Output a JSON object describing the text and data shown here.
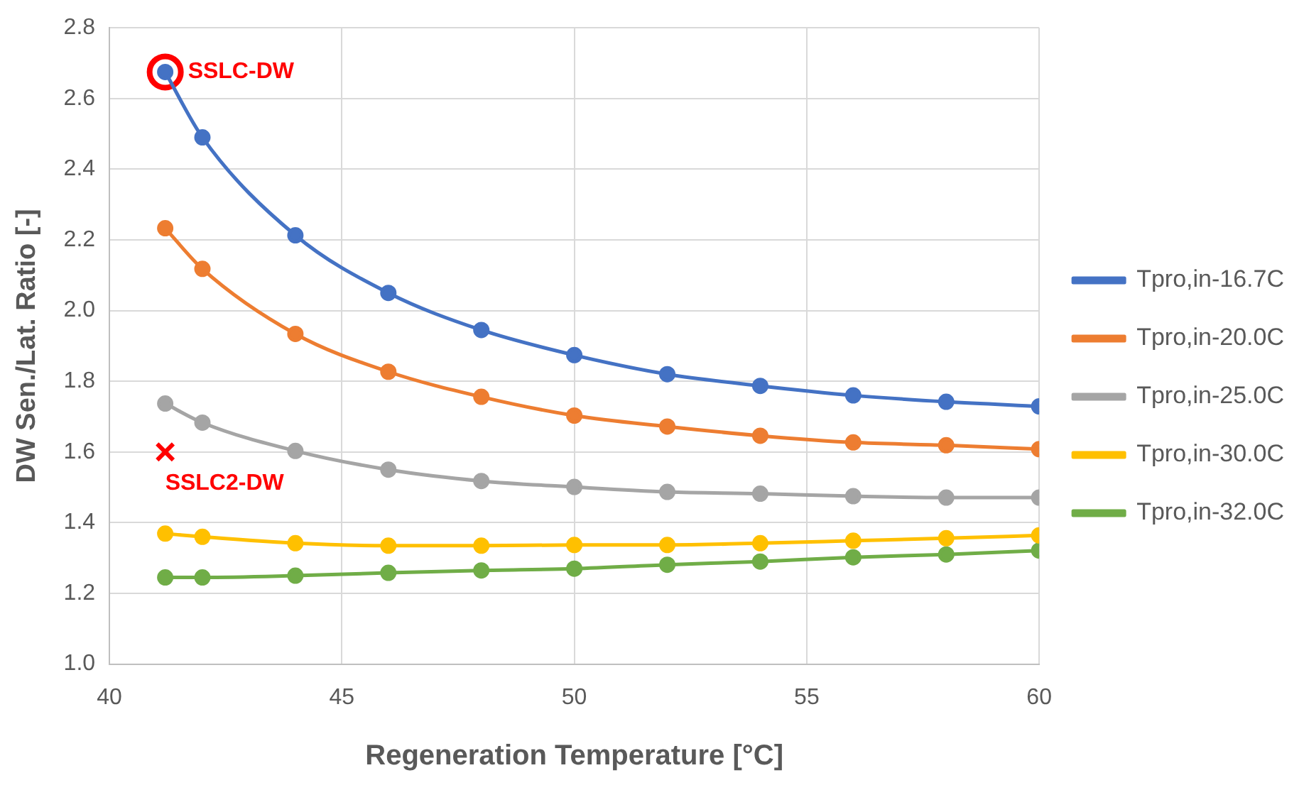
{
  "chart_data": {
    "type": "line",
    "xlabel": "Regeneration Temperature [°C]",
    "ylabel": "DW Sen./Lat. Ratio [-]",
    "x": [
      41.2,
      42,
      44,
      46,
      48,
      50,
      52,
      54,
      56,
      58,
      60
    ],
    "xlim": [
      40,
      60
    ],
    "xticks": [
      40,
      45,
      50,
      55,
      60
    ],
    "ylim": [
      1.0,
      2.8
    ],
    "yticks": [
      {
        "value": 1.0,
        "label": "1.0"
      },
      {
        "value": 1.2,
        "label": "1.2"
      },
      {
        "value": 1.4,
        "label": "1.4"
      },
      {
        "value": 1.6,
        "label": "1.6"
      },
      {
        "value": 1.8,
        "label": "1.8"
      },
      {
        "value": 2.0,
        "label": "2.0"
      },
      {
        "value": 2.2,
        "label": "2.2"
      },
      {
        "value": 2.4,
        "label": "2.4"
      },
      {
        "value": 2.6,
        "label": "2.6"
      },
      {
        "value": 2.8,
        "label": "2.8"
      }
    ],
    "grid": true,
    "legend": "right",
    "marker": "circle",
    "series": [
      {
        "name": "Tpro,in-16.7C",
        "color": "#4472c4",
        "values": [
          2.675,
          2.49,
          2.213,
          2.05,
          1.945,
          1.874,
          1.82,
          1.787,
          1.76,
          1.742,
          1.729
        ]
      },
      {
        "name": "Tpro,in-20.0C",
        "color": "#ed7d31",
        "values": [
          2.233,
          2.118,
          1.934,
          1.827,
          1.756,
          1.703,
          1.672,
          1.646,
          1.627,
          1.619,
          1.608
        ]
      },
      {
        "name": "Tpro,in-25.0C",
        "color": "#a5a5a5",
        "values": [
          1.737,
          1.683,
          1.603,
          1.55,
          1.518,
          1.501,
          1.487,
          1.482,
          1.475,
          1.471,
          1.471
        ]
      },
      {
        "name": "Tpro,in-30.0C",
        "color": "#ffc000",
        "values": [
          1.369,
          1.36,
          1.342,
          1.335,
          1.335,
          1.337,
          1.337,
          1.342,
          1.349,
          1.356,
          1.364
        ]
      },
      {
        "name": "Tpro,in-32.0C",
        "color": "#70ad47",
        "values": [
          1.245,
          1.245,
          1.25,
          1.258,
          1.265,
          1.27,
          1.281,
          1.29,
          1.302,
          1.31,
          1.321
        ]
      },
      {
        "type": "scatter",
        "color": "#ff0000",
        "x": [
          41.2
        ],
        "values": [
          2.675
        ],
        "marker": "circle"
      },
      {
        "type": "scatter",
        "color": "#ff0000",
        "x": [
          41.2
        ],
        "values": [
          1.6
        ],
        "marker": "cross"
      }
    ],
    "annotations": [
      {
        "text": "SSLC-DW",
        "x": 41.2,
        "y": 2.675
      },
      {
        "text": "SSLC2-DW",
        "x": 41.2,
        "y": 1.6
      }
    ]
  }
}
